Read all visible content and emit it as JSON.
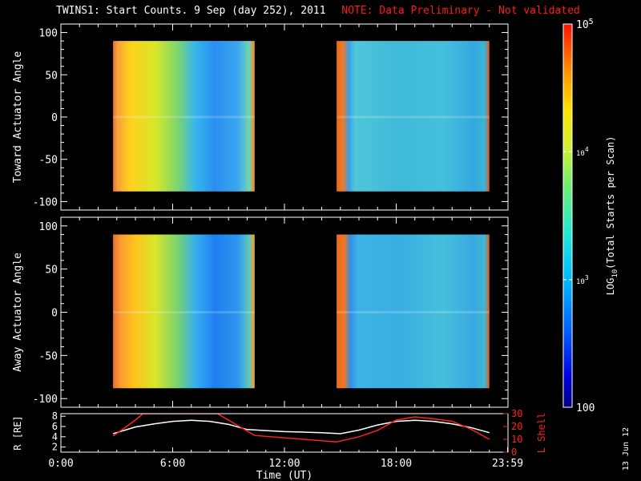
{
  "title": "TWINS1: Start Counts.  9 Sep (day 252), 2011",
  "note": "NOTE: Data Preliminary - Not validated",
  "stamp": "13 Jun 12",
  "colors": {
    "background": "#000000",
    "note": "#ff1a1a",
    "r_line": "#ffffff",
    "lshell_line": "#ff2020"
  },
  "chart_data": [
    {
      "type": "heatmap",
      "name": "toward",
      "ylabel": "Toward Actuator Angle",
      "ylim": [
        -110,
        110
      ],
      "yticks": [
        100,
        50,
        0,
        -50,
        -100
      ],
      "xlim": [
        0,
        24
      ],
      "blocks": [
        {
          "x": [
            2.8,
            10.4
          ],
          "y": [
            -88,
            90
          ],
          "stops": [
            [
              0,
              "#f06c2c"
            ],
            [
              0.03,
              "#f5a13a"
            ],
            [
              0.12,
              "#ffd01c"
            ],
            [
              0.3,
              "#d7e62a"
            ],
            [
              0.45,
              "#7fd66a"
            ],
            [
              0.58,
              "#37b6ee"
            ],
            [
              0.72,
              "#2a8ef0"
            ],
            [
              0.88,
              "#3aa7f0"
            ],
            [
              0.96,
              "#6ed5b5"
            ],
            [
              1.0,
              "#f38a2a"
            ]
          ]
        },
        {
          "x": [
            14.8,
            23.0
          ],
          "y": [
            -88,
            90
          ],
          "stops": [
            [
              0,
              "#e06a1e"
            ],
            [
              0.04,
              "#f37a24"
            ],
            [
              0.08,
              "#3a9ee8"
            ],
            [
              0.12,
              "#4fc6d9"
            ],
            [
              0.4,
              "#3fb9d8"
            ],
            [
              0.7,
              "#44bfdc"
            ],
            [
              0.9,
              "#35a8e0"
            ],
            [
              0.97,
              "#3bb4d4"
            ],
            [
              1.0,
              "#e8561e"
            ]
          ]
        }
      ]
    },
    {
      "type": "heatmap",
      "name": "away",
      "ylabel": "Away Actuator Angle",
      "ylim": [
        -110,
        110
      ],
      "yticks": [
        100,
        50,
        0,
        -50,
        -100
      ],
      "xlim": [
        0,
        24
      ],
      "blocks": [
        {
          "x": [
            2.8,
            10.4
          ],
          "y": [
            -88,
            90
          ],
          "stops": [
            [
              0,
              "#f06c2c"
            ],
            [
              0.05,
              "#f79a36"
            ],
            [
              0.15,
              "#ffc21c"
            ],
            [
              0.3,
              "#d8e52a"
            ],
            [
              0.45,
              "#7dd36a"
            ],
            [
              0.58,
              "#35b0ee"
            ],
            [
              0.72,
              "#1f7ef0"
            ],
            [
              0.88,
              "#2f95ee"
            ],
            [
              0.96,
              "#5cc9c2"
            ],
            [
              1.0,
              "#f6a028"
            ]
          ]
        },
        {
          "x": [
            14.8,
            23.0
          ],
          "y": [
            -88,
            90
          ],
          "stops": [
            [
              0,
              "#e66a1e"
            ],
            [
              0.05,
              "#f27822"
            ],
            [
              0.09,
              "#2e8fe8"
            ],
            [
              0.14,
              "#40b3e6"
            ],
            [
              0.4,
              "#3aaee2"
            ],
            [
              0.7,
              "#45bfdc"
            ],
            [
              0.9,
              "#3aa8e0"
            ],
            [
              0.97,
              "#40b8d0"
            ],
            [
              1.0,
              "#e8561e"
            ]
          ]
        }
      ]
    },
    {
      "type": "line",
      "name": "ephemeris",
      "ylabel": "R [R_E]",
      "ylabel_display": "R [RE]",
      "ylabel_right": "L Shell",
      "xlabel": "Time (UT)",
      "xlim": [
        0,
        24
      ],
      "ylim": [
        1,
        8.5
      ],
      "yticks": [
        8,
        6,
        4,
        2
      ],
      "ylim_right": [
        0,
        30
      ],
      "yticks_right": [
        30,
        20,
        10,
        0
      ],
      "xticks": [
        {
          "x": 0,
          "label": "0:00"
        },
        {
          "x": 6,
          "label": "6:00"
        },
        {
          "x": 12,
          "label": "12:00"
        },
        {
          "x": 18,
          "label": "18:00"
        },
        {
          "x": 23.98,
          "label": "23:59"
        }
      ],
      "series": [
        {
          "name": "R",
          "axis": "left",
          "color": "#ffffff",
          "x": [
            2.8,
            4,
            5,
            6,
            7,
            8,
            9,
            10,
            11,
            12,
            13,
            14,
            15,
            16,
            17,
            18,
            19,
            20,
            21,
            22,
            23
          ],
          "y": [
            4.6,
            5.9,
            6.5,
            7.0,
            7.2,
            7.0,
            6.4,
            5.4,
            5.2,
            5.0,
            4.9,
            4.8,
            4.6,
            5.3,
            6.3,
            7.0,
            7.2,
            7.0,
            6.5,
            5.8,
            4.8
          ]
        },
        {
          "name": "L Shell",
          "axis": "right",
          "color": "#ff2020",
          "x": [
            2.8,
            4,
            4.4,
            8.4,
            10.4,
            14.8,
            16,
            17,
            18,
            19,
            20,
            21,
            22,
            23
          ],
          "y": [
            12.5,
            25,
            30,
            30,
            13,
            8,
            12,
            17,
            25,
            27.5,
            26,
            24,
            18,
            10
          ]
        }
      ]
    }
  ],
  "colorbar": {
    "label_prefix": "LOG",
    "label_sub": "10",
    "label_rest": "(Total Starts per Scan)",
    "ticks": [
      {
        "label": "10",
        "sup": "5",
        "frac": 1.0
      },
      {
        "label": "10",
        "sup": "4",
        "frac": 0.667
      },
      {
        "label": "10",
        "sup": "3",
        "frac": 0.333
      },
      {
        "label": "100",
        "sup": "",
        "frac": 0.0
      }
    ],
    "stops": [
      [
        0,
        "#000080"
      ],
      [
        0.08,
        "#0000e0"
      ],
      [
        0.2,
        "#0060ff"
      ],
      [
        0.33,
        "#00b8ff"
      ],
      [
        0.45,
        "#20e8d8"
      ],
      [
        0.58,
        "#70f070"
      ],
      [
        0.68,
        "#d0f030"
      ],
      [
        0.78,
        "#ffe000"
      ],
      [
        0.88,
        "#ff9000"
      ],
      [
        1.0,
        "#ff1000"
      ]
    ]
  }
}
